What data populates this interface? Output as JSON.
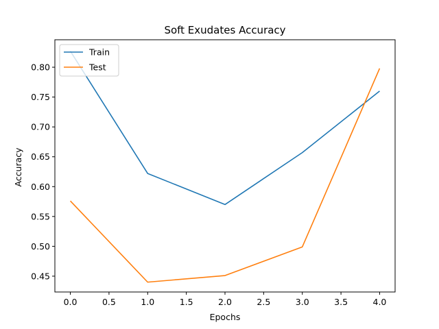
{
  "chart_data": {
    "type": "line",
    "title": "Soft Exudates Accuracy",
    "xlabel": "Epochs",
    "ylabel": "Accuracy",
    "x": [
      0,
      1,
      2,
      3,
      4
    ],
    "xlim": [
      -0.2,
      4.2
    ],
    "ylim": [
      0.4235,
      0.846
    ],
    "xticks": [
      0.0,
      0.5,
      1.0,
      1.5,
      2.0,
      2.5,
      3.0,
      3.5,
      4.0
    ],
    "xtick_labels": [
      "0.0",
      "0.5",
      "1.0",
      "1.5",
      "2.0",
      "2.5",
      "3.0",
      "3.5",
      "4.0"
    ],
    "yticks": [
      0.45,
      0.5,
      0.55,
      0.6,
      0.65,
      0.7,
      0.75,
      0.8
    ],
    "ytick_labels": [
      "0.45",
      "0.50",
      "0.55",
      "0.60",
      "0.65",
      "0.70",
      "0.75",
      "0.80"
    ],
    "grid": false,
    "legend_position": "top-left",
    "series": [
      {
        "name": "Train",
        "color": "#1f77b4",
        "values": [
          0.827,
          0.622,
          0.57,
          0.657,
          0.76
        ]
      },
      {
        "name": "Test",
        "color": "#ff7f0e",
        "values": [
          0.576,
          0.44,
          0.451,
          0.499,
          0.798
        ]
      }
    ]
  }
}
